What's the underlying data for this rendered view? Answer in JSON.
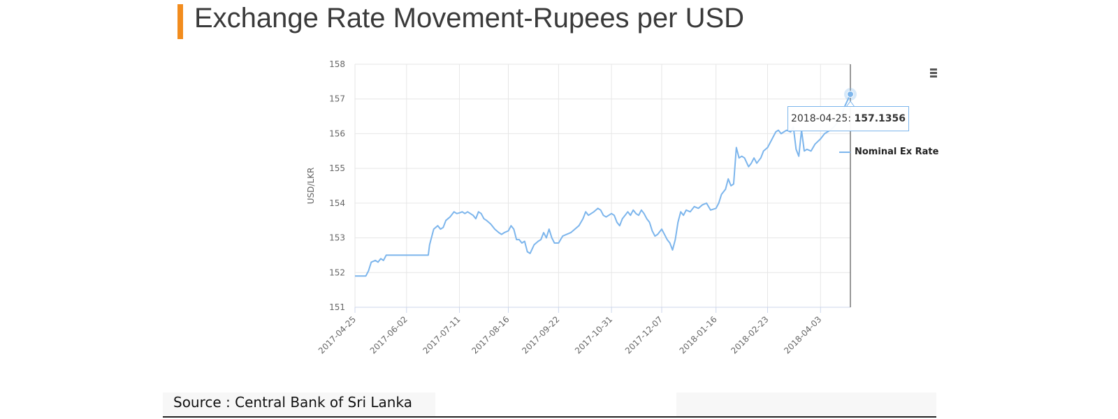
{
  "page": {
    "title": "Exchange Rate Movement-Rupees per USD",
    "source": "Source : Central Bank of Sri Lanka",
    "accent_color": "#f28c1e",
    "menu_icon": "hamburger-menu-icon"
  },
  "tooltip": {
    "date": "2018-04-25:",
    "value": "157.1356"
  },
  "chart_data": {
    "type": "line",
    "title": "",
    "xlabel": "",
    "ylabel": "USD/LKR",
    "ylim": [
      151,
      158
    ],
    "yticks": [
      "151",
      "152",
      "153",
      "154",
      "155",
      "156",
      "157",
      "158"
    ],
    "xticks": [
      "2017-04-25",
      "2017-06-02",
      "2017-07-11",
      "2017-08-16",
      "2017-09-22",
      "2017-10-31",
      "2017-12-07",
      "2018-01-16",
      "2018-02-23",
      "2018-04-03"
    ],
    "xlim": [
      "2017-04-25",
      "2018-04-25"
    ],
    "grid": true,
    "legend_position": "right",
    "line_color": "#7cb5ec",
    "series": [
      {
        "name": "Nominal Ex Rate",
        "points": [
          [
            "2017-04-25",
            151.9
          ],
          [
            "2017-05-03",
            151.9
          ],
          [
            "2017-05-05",
            152.05
          ],
          [
            "2017-05-07",
            152.3
          ],
          [
            "2017-05-10",
            152.35
          ],
          [
            "2017-05-12",
            152.3
          ],
          [
            "2017-05-14",
            152.4
          ],
          [
            "2017-05-16",
            152.35
          ],
          [
            "2017-05-18",
            152.5
          ],
          [
            "2017-05-25",
            152.5
          ],
          [
            "2017-06-02",
            152.5
          ],
          [
            "2017-06-10",
            152.5
          ],
          [
            "2017-06-18",
            152.5
          ],
          [
            "2017-06-19",
            152.8
          ],
          [
            "2017-06-22",
            153.25
          ],
          [
            "2017-06-25",
            153.35
          ],
          [
            "2017-06-27",
            153.25
          ],
          [
            "2017-06-29",
            153.3
          ],
          [
            "2017-07-01",
            153.5
          ],
          [
            "2017-07-04",
            153.6
          ],
          [
            "2017-07-07",
            153.75
          ],
          [
            "2017-07-09",
            153.7
          ],
          [
            "2017-07-11",
            153.72
          ],
          [
            "2017-07-13",
            153.75
          ],
          [
            "2017-07-15",
            153.7
          ],
          [
            "2017-07-17",
            153.75
          ],
          [
            "2017-07-19",
            153.7
          ],
          [
            "2017-07-21",
            153.65
          ],
          [
            "2017-07-23",
            153.55
          ],
          [
            "2017-07-25",
            153.75
          ],
          [
            "2017-07-27",
            153.7
          ],
          [
            "2017-07-29",
            153.55
          ],
          [
            "2017-07-31",
            153.5
          ],
          [
            "2017-08-03",
            153.4
          ],
          [
            "2017-08-06",
            153.25
          ],
          [
            "2017-08-09",
            153.15
          ],
          [
            "2017-08-11",
            153.1
          ],
          [
            "2017-08-13",
            153.15
          ],
          [
            "2017-08-16",
            153.2
          ],
          [
            "2017-08-18",
            153.35
          ],
          [
            "2017-08-20",
            153.25
          ],
          [
            "2017-08-22",
            152.95
          ],
          [
            "2017-08-24",
            152.95
          ],
          [
            "2017-08-26",
            152.85
          ],
          [
            "2017-08-28",
            152.9
          ],
          [
            "2017-08-30",
            152.6
          ],
          [
            "2017-09-01",
            152.55
          ],
          [
            "2017-09-04",
            152.8
          ],
          [
            "2017-09-07",
            152.9
          ],
          [
            "2017-09-09",
            152.95
          ],
          [
            "2017-09-11",
            153.15
          ],
          [
            "2017-09-13",
            153.0
          ],
          [
            "2017-09-15",
            153.25
          ],
          [
            "2017-09-17",
            153.0
          ],
          [
            "2017-09-19",
            152.85
          ],
          [
            "2017-09-22",
            152.85
          ],
          [
            "2017-09-25",
            153.05
          ],
          [
            "2017-09-28",
            153.1
          ],
          [
            "2017-10-01",
            153.15
          ],
          [
            "2017-10-04",
            153.25
          ],
          [
            "2017-10-07",
            153.35
          ],
          [
            "2017-10-10",
            153.55
          ],
          [
            "2017-10-12",
            153.75
          ],
          [
            "2017-10-14",
            153.65
          ],
          [
            "2017-10-16",
            153.7
          ],
          [
            "2017-10-18",
            153.75
          ],
          [
            "2017-10-21",
            153.85
          ],
          [
            "2017-10-23",
            153.8
          ],
          [
            "2017-10-25",
            153.65
          ],
          [
            "2017-10-27",
            153.6
          ],
          [
            "2017-10-31",
            153.7
          ],
          [
            "2017-11-02",
            153.65
          ],
          [
            "2017-11-04",
            153.45
          ],
          [
            "2017-11-06",
            153.35
          ],
          [
            "2017-11-08",
            153.55
          ],
          [
            "2017-11-10",
            153.65
          ],
          [
            "2017-11-12",
            153.75
          ],
          [
            "2017-11-14",
            153.65
          ],
          [
            "2017-11-16",
            153.8
          ],
          [
            "2017-11-18",
            153.7
          ],
          [
            "2017-11-20",
            153.65
          ],
          [
            "2017-11-22",
            153.8
          ],
          [
            "2017-11-24",
            153.7
          ],
          [
            "2017-11-26",
            153.55
          ],
          [
            "2017-11-28",
            153.45
          ],
          [
            "2017-11-30",
            153.2
          ],
          [
            "2017-12-02",
            153.05
          ],
          [
            "2017-12-04",
            153.1
          ],
          [
            "2017-12-07",
            153.25
          ],
          [
            "2017-12-09",
            153.1
          ],
          [
            "2017-12-11",
            152.95
          ],
          [
            "2017-12-13",
            152.85
          ],
          [
            "2017-12-15",
            152.65
          ],
          [
            "2017-12-17",
            152.95
          ],
          [
            "2017-12-19",
            153.45
          ],
          [
            "2017-12-21",
            153.75
          ],
          [
            "2017-12-23",
            153.65
          ],
          [
            "2017-12-25",
            153.8
          ],
          [
            "2017-12-28",
            153.75
          ],
          [
            "2017-12-31",
            153.9
          ],
          [
            "2018-01-03",
            153.85
          ],
          [
            "2018-01-06",
            153.95
          ],
          [
            "2018-01-09",
            154.0
          ],
          [
            "2018-01-12",
            153.8
          ],
          [
            "2018-01-16",
            153.85
          ],
          [
            "2018-01-18",
            154.0
          ],
          [
            "2018-01-20",
            154.25
          ],
          [
            "2018-01-23",
            154.4
          ],
          [
            "2018-01-25",
            154.7
          ],
          [
            "2018-01-27",
            154.5
          ],
          [
            "2018-01-29",
            154.55
          ],
          [
            "2018-01-31",
            155.6
          ],
          [
            "2018-02-02",
            155.3
          ],
          [
            "2018-02-04",
            155.35
          ],
          [
            "2018-02-06",
            155.3
          ],
          [
            "2018-02-09",
            155.05
          ],
          [
            "2018-02-11",
            155.15
          ],
          [
            "2018-02-13",
            155.3
          ],
          [
            "2018-02-15",
            155.15
          ],
          [
            "2018-02-18",
            155.3
          ],
          [
            "2018-02-20",
            155.5
          ],
          [
            "2018-02-23",
            155.6
          ],
          [
            "2018-02-25",
            155.75
          ],
          [
            "2018-02-27",
            155.9
          ],
          [
            "2018-03-01",
            156.05
          ],
          [
            "2018-03-03",
            156.1
          ],
          [
            "2018-03-05",
            156.0
          ],
          [
            "2018-03-07",
            156.05
          ],
          [
            "2018-03-09",
            156.1
          ],
          [
            "2018-03-12",
            156.05
          ],
          [
            "2018-03-14",
            156.2
          ],
          [
            "2018-03-16",
            155.55
          ],
          [
            "2018-03-18",
            155.35
          ],
          [
            "2018-03-20",
            156.1
          ],
          [
            "2018-03-22",
            155.5
          ],
          [
            "2018-03-24",
            155.55
          ],
          [
            "2018-03-27",
            155.5
          ],
          [
            "2018-03-30",
            155.7
          ],
          [
            "2018-04-03",
            155.85
          ],
          [
            "2018-04-06",
            156.0
          ],
          [
            "2018-04-10",
            156.1
          ],
          [
            "2018-04-13",
            156.2
          ],
          [
            "2018-04-17",
            156.4
          ],
          [
            "2018-04-21",
            156.8
          ],
          [
            "2018-04-25",
            157.1356
          ]
        ]
      }
    ]
  }
}
